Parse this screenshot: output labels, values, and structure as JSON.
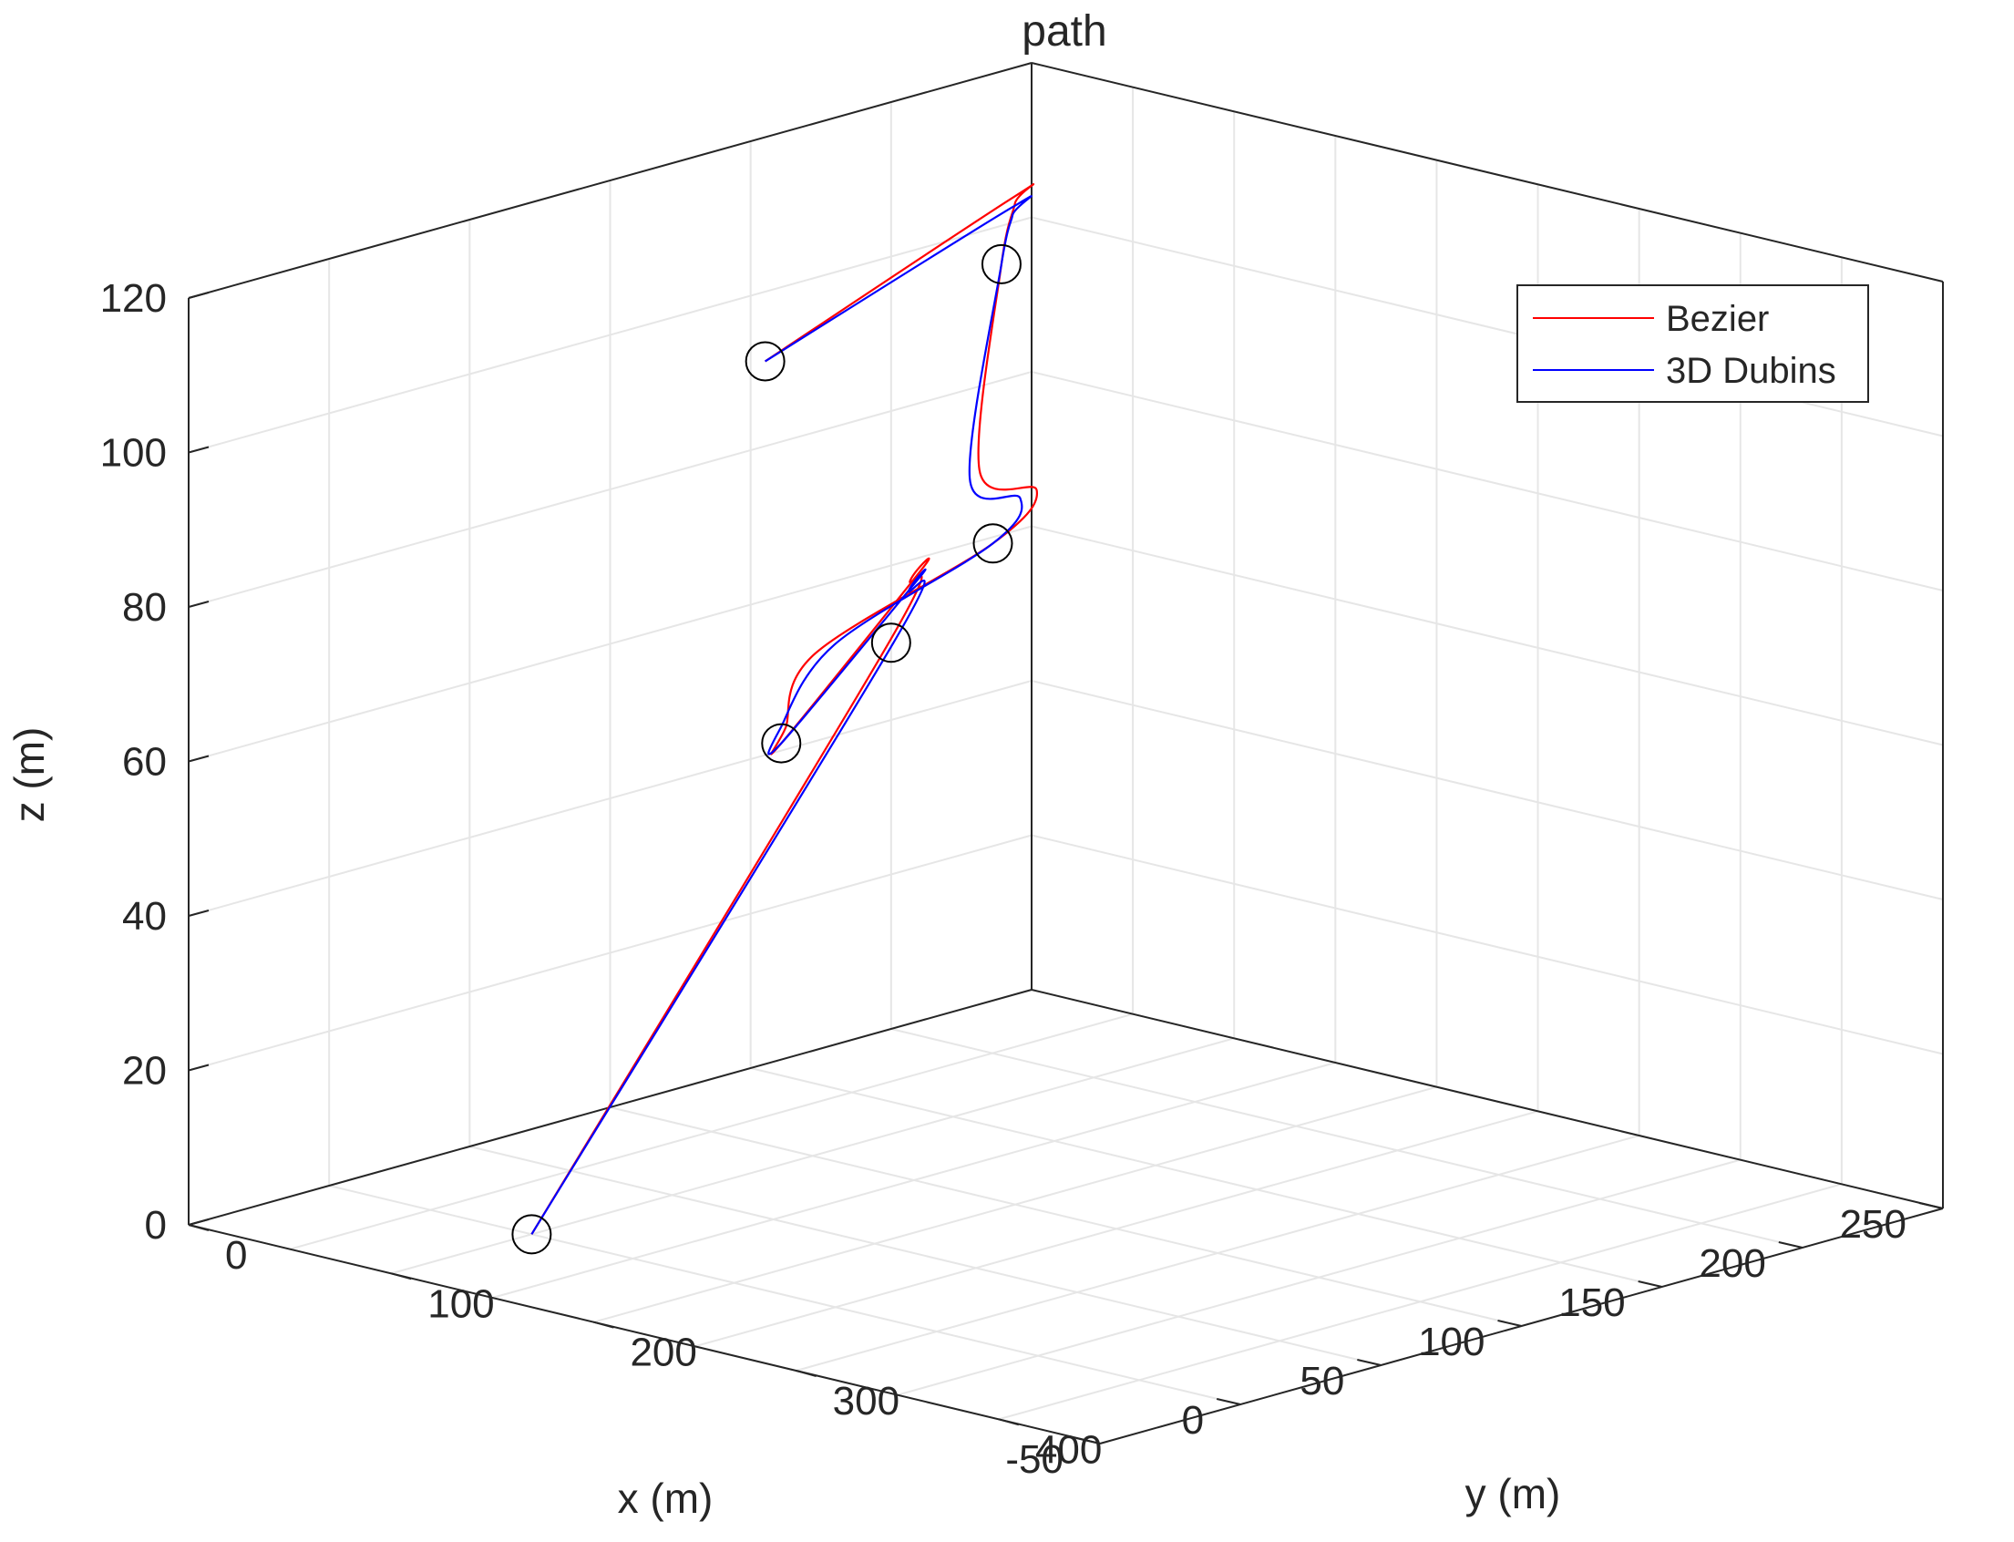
{
  "chart_data": {
    "type": "line3d",
    "title": "path",
    "xlabel": "x (m)",
    "ylabel": "y (m)",
    "zlabel": "z (m)",
    "xlim": [
      -50,
      250
    ],
    "ylim": [
      0,
      450
    ],
    "zlim": [
      0,
      120
    ],
    "x_ticks": [
      250,
      200,
      150,
      100,
      50,
      0,
      -50
    ],
    "y_ticks": [
      0,
      100,
      200,
      300,
      400
    ],
    "z_ticks": [
      0,
      20,
      40,
      60,
      80,
      100,
      120
    ],
    "grid": true,
    "legend": {
      "position": "top-right",
      "entries": [
        "Bezier",
        "3D Dubins"
      ]
    },
    "waypoints": [
      [
        0,
        100,
        0
      ],
      [
        200,
        0,
        50
      ],
      [
        60,
        140,
        60
      ],
      [
        20,
        300,
        100
      ],
      [
        160,
        110,
        110
      ],
      [
        -25,
        250,
        125
      ]
    ],
    "series": [
      {
        "name": "Bezier",
        "color": "#ff0000",
        "points": [
          [
            0,
            100,
            0
          ],
          [
            199,
            0,
            50
          ],
          [
            214,
            -10,
            56
          ],
          [
            212,
            -2,
            58
          ],
          [
            60,
            140,
            60
          ],
          [
            40,
            170,
            66
          ],
          [
            0,
            240,
            84
          ],
          [
            20,
            300,
            100
          ],
          [
            32,
            305,
            106
          ],
          [
            26,
            285,
            108
          ],
          [
            160,
            110,
            110
          ],
          [
            172,
            100,
            116
          ],
          [
            166,
            108,
            118
          ],
          [
            -25,
            250,
            125
          ]
        ]
      },
      {
        "name": "3D Dubins",
        "color": "#0000ff",
        "points": [
          [
            0,
            100,
            0
          ],
          [
            200,
            1,
            50
          ],
          [
            212,
            -8,
            55
          ],
          [
            210,
            -1,
            57
          ],
          [
            60,
            140,
            60
          ],
          [
            38,
            170,
            66
          ],
          [
            4,
            244,
            85
          ],
          [
            20,
            300,
            100
          ],
          [
            29,
            301,
            105
          ],
          [
            24,
            283,
            107
          ],
          [
            160,
            110,
            110
          ],
          [
            169,
            103,
            115
          ],
          [
            164,
            110,
            117
          ],
          [
            -25,
            250,
            125
          ]
        ]
      }
    ]
  }
}
